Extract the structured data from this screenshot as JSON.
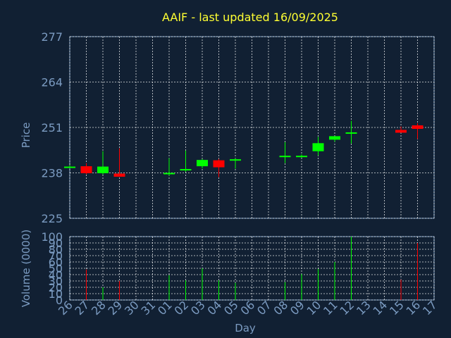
{
  "chart_data": [
    {
      "type": "candlestick",
      "title": "AAIF - last updated 16/09/2025",
      "ylabel": "Price",
      "ylim": [
        225,
        277
      ],
      "yticks": [
        225,
        238,
        251,
        264,
        277
      ],
      "grid": true,
      "candles": [
        {
          "day": "26",
          "open": 239.8,
          "high": 240.2,
          "low": 239.6,
          "close": 239.8
        },
        {
          "day": "27",
          "open": 239.9,
          "high": 240.8,
          "low": 237.6,
          "close": 237.9
        },
        {
          "day": "28",
          "open": 237.9,
          "high": 244.2,
          "low": 237.5,
          "close": 239.8
        },
        {
          "day": "29",
          "open": 237.8,
          "high": 245.0,
          "low": 236.9,
          "close": 236.9
        },
        {
          "day": "01",
          "open": 237.9,
          "high": 242.2,
          "low": 237.2,
          "close": 238.0
        },
        {
          "day": "02",
          "open": 238.9,
          "high": 244.4,
          "low": 238.3,
          "close": 239.1
        },
        {
          "day": "03",
          "open": 239.9,
          "high": 242.0,
          "low": 239.3,
          "close": 241.7
        },
        {
          "day": "04",
          "open": 241.6,
          "high": 242.0,
          "low": 236.8,
          "close": 239.6
        },
        {
          "day": "05",
          "open": 241.6,
          "high": 242.2,
          "low": 239.2,
          "close": 241.9
        },
        {
          "day": "08",
          "open": 242.6,
          "high": 246.8,
          "low": 240.8,
          "close": 242.9
        },
        {
          "day": "09",
          "open": 242.6,
          "high": 243.3,
          "low": 242.3,
          "close": 242.9
        },
        {
          "day": "10",
          "open": 244.2,
          "high": 248.3,
          "low": 243.0,
          "close": 246.5
        },
        {
          "day": "11",
          "open": 247.5,
          "high": 248.3,
          "low": 246.9,
          "close": 248.5
        },
        {
          "day": "12",
          "open": 249.2,
          "high": 252.9,
          "low": 246.4,
          "close": 249.6
        },
        {
          "day": "15",
          "open": 250.3,
          "high": 251.3,
          "low": 249.6,
          "close": 249.5
        },
        {
          "day": "16",
          "open": 251.6,
          "high": 252.2,
          "low": 247.7,
          "close": 250.6
        }
      ],
      "colors": {
        "up": "#00ff00",
        "down": "#ff0000"
      }
    },
    {
      "type": "bar",
      "ylabel": "Volume (0000)",
      "xlabel": "Day",
      "ylim": [
        0,
        100
      ],
      "yticks": [
        0,
        10,
        20,
        30,
        40,
        50,
        60,
        70,
        80,
        90,
        100
      ],
      "grid": true,
      "categories": [
        "26",
        "27",
        "28",
        "29",
        "30",
        "31",
        "01",
        "02",
        "03",
        "04",
        "05",
        "06",
        "07",
        "08",
        "09",
        "10",
        "11",
        "12",
        "13",
        "14",
        "15",
        "16",
        "17"
      ],
      "values": [
        0,
        48,
        20,
        30,
        0,
        0,
        39,
        31,
        50,
        31,
        27,
        0,
        0,
        28,
        41,
        49,
        60,
        100,
        0,
        0,
        32,
        90,
        0
      ],
      "bar_colors": [
        "none",
        "#ff0000",
        "#00ff00",
        "#ff0000",
        "none",
        "none",
        "#00ff00",
        "#00ff00",
        "#00ff00",
        "#00ff00",
        "#00ff00",
        "none",
        "none",
        "#00ff00",
        "#00ff00",
        "#00ff00",
        "#00ff00",
        "#00ff00",
        "none",
        "none",
        "#ff0000",
        "#ff0000",
        "none"
      ]
    }
  ]
}
